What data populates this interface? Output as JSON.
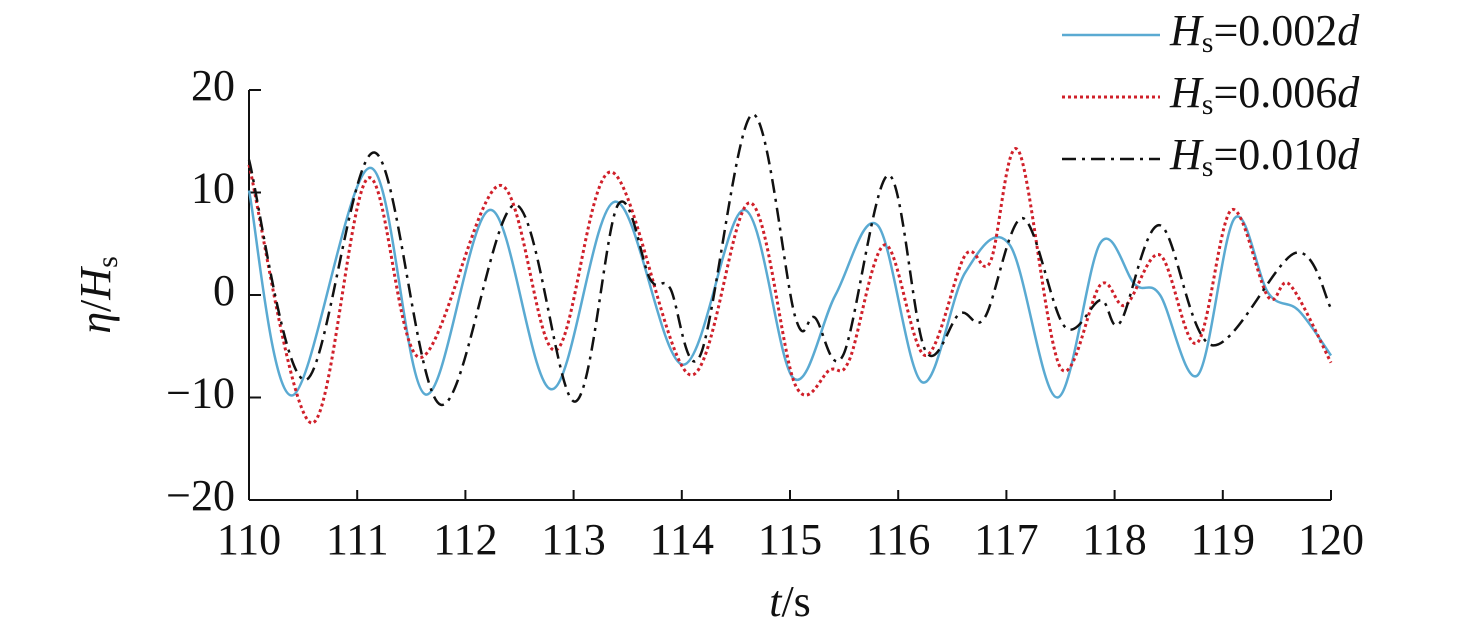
{
  "chart_data": {
    "type": "line",
    "x_label": "t/s",
    "y_label": "η/Hs",
    "xlim": [
      110,
      120
    ],
    "xticks": [
      110,
      111,
      112,
      113,
      114,
      115,
      116,
      117,
      118,
      119,
      120
    ],
    "ylim": [
      -20,
      20
    ],
    "yticks": [
      {
        "value": -20,
        "label": "−20"
      },
      {
        "value": -10,
        "label": "−10"
      },
      0,
      10,
      20
    ],
    "legend": "upper right",
    "series": [
      {
        "name": "Hs=0.002d",
        "color": "#5aaad2",
        "style": "solid",
        "x": [
          110,
          110.4,
          111.12,
          111.63,
          112.23,
          112.8,
          113.38,
          114.01,
          114.58,
          115.03,
          115.42,
          115.81,
          116.22,
          116.62,
          117.03,
          117.47,
          117.87,
          118.19,
          118.42,
          118.77,
          119.11,
          119.42,
          119.7,
          120
        ],
        "values": [
          10.2,
          -9.8,
          12.4,
          -9.7,
          8.3,
          -9.2,
          9.1,
          -6.8,
          8.3,
          -8.1,
          0,
          6.8,
          -8.5,
          2.2,
          4.9,
          -10,
          5.1,
          1.0,
          0,
          -7.8,
          7.5,
          0.2,
          -1.5,
          -5.9
        ]
      },
      {
        "name": "Hs=0.006d",
        "color": "#d0202a",
        "style": "dotted",
        "x": [
          110,
          110.58,
          111.1,
          111.58,
          112.32,
          112.83,
          113.35,
          114.08,
          114.63,
          115.05,
          115.37,
          115.55,
          115.88,
          116.25,
          116.62,
          116.85,
          117.11,
          117.5,
          117.87,
          118.1,
          118.42,
          118.76,
          119.08,
          119.42,
          119.62,
          120
        ],
        "values": [
          12.7,
          -12.5,
          11.4,
          -6.1,
          10.7,
          -5.4,
          12,
          -7.8,
          9,
          -8.8,
          -7.3,
          -6.3,
          4.9,
          -5.9,
          3.9,
          3.2,
          14.1,
          -7.1,
          1.0,
          -1.0,
          3.9,
          -4.7,
          8.3,
          -0.2,
          1.0,
          -6.6
        ]
      },
      {
        "name": "Hs=0.010d",
        "color": "#111111",
        "style": "dashdot",
        "x": [
          110,
          110.52,
          111.16,
          111.77,
          112.46,
          113.01,
          113.41,
          113.71,
          113.89,
          114.17,
          114.65,
          115.05,
          115.23,
          115.49,
          115.91,
          116.25,
          116.57,
          116.8,
          117.15,
          117.54,
          117.87,
          118.05,
          118.42,
          118.9,
          119.67,
          120
        ],
        "values": [
          13.2,
          -8.3,
          13.9,
          -10.7,
          8.8,
          -10.4,
          8.8,
          1.5,
          0.7,
          -5.9,
          17.6,
          -2.2,
          -2.2,
          -5.9,
          11.7,
          -5.4,
          -1.8,
          -2.2,
          7.5,
          -3.1,
          -0.5,
          -2.7,
          6.8,
          -4.9,
          4.1,
          -1.3
        ]
      }
    ]
  }
}
